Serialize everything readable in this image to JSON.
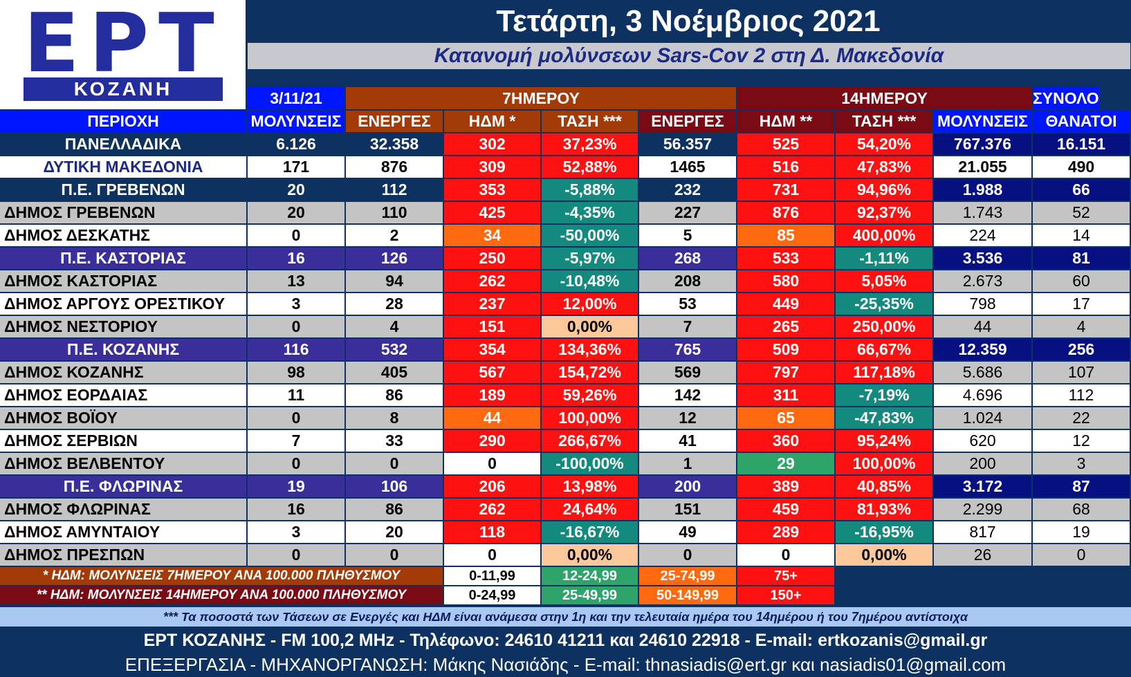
{
  "logo": {
    "main": "ΕΡΤ",
    "sub": "ΚΟΖΑΝΗ"
  },
  "header": {
    "date": "Τετάρτη, 3 Νοέμβριος 2021",
    "subtitle": "Κατανομή μολύνσεων Sars-Cov 2 στη Δ. Μακεδονία"
  },
  "groups": {
    "day": "3/11/21",
    "seven": "7ΗΜΕΡΟΥ",
    "fourteen": "14ΗΜΕΡΟΥ",
    "total": "ΣΥΝΟΛΟ"
  },
  "columns": [
    "ΠΕΡΙΟΧΗ",
    "ΜΟΛΥΝΣΕΙΣ",
    "ΕΝΕΡΓΕΣ",
    "ΗΔΜ *",
    "ΤΑΣΗ ***",
    "ΕΝΕΡΓΕΣ",
    "ΗΔΜ **",
    "ΤΑΣΗ ***",
    "ΜΟΛΥΝΣΕΙΣ",
    "ΘΑΝΑΤΟΙ"
  ],
  "rows": [
    {
      "type": "national",
      "cells": [
        "ΠΑΝΕΛΛΑΔΙΚΑ",
        "6.126",
        "32.358",
        "302",
        "37,23%",
        "56.357",
        "525",
        "54,20%",
        "767.376",
        "16.151"
      ],
      "colors": [
        "red",
        "red",
        "red",
        "red"
      ]
    },
    {
      "type": "region",
      "cells": [
        "ΔΥΤΙΚΗ ΜΑΚΕΔΟΝΙΑ",
        "171",
        "876",
        "309",
        "52,88%",
        "1465",
        "516",
        "47,83%",
        "21.055",
        "490"
      ],
      "colors": [
        "red",
        "red",
        "red",
        "red"
      ]
    },
    {
      "type": "pe",
      "cells": [
        "Π.Ε. ΓΡΕΒΕΝΩΝ",
        "20",
        "112",
        "353",
        "-5,88%",
        "232",
        "731",
        "94,96%",
        "1.988",
        "66"
      ],
      "colors": [
        "red",
        "teal",
        "red",
        "red"
      ]
    },
    {
      "type": "municipality",
      "shade": "grey",
      "cells": [
        "ΔΗΜΟΣ ΓΡΕΒΕΝΩΝ",
        "20",
        "110",
        "425",
        "-4,35%",
        "227",
        "876",
        "92,37%",
        "1.743",
        "52"
      ],
      "colors": [
        "red",
        "teal",
        "red",
        "red"
      ]
    },
    {
      "type": "municipality",
      "shade": "white",
      "cells": [
        "ΔΗΜΟΣ ΔΕΣΚΑΤΗΣ",
        "0",
        "2",
        "34",
        "-50,00%",
        "5",
        "85",
        "400,00%",
        "224",
        "14"
      ],
      "colors": [
        "orange",
        "teal",
        "orange",
        "red"
      ]
    },
    {
      "type": "pe",
      "cells": [
        "Π.Ε. ΚΑΣΤΟΡΙΑΣ",
        "16",
        "126",
        "250",
        "-5,97%",
        "268",
        "533",
        "-1,11%",
        "3.536",
        "81"
      ],
      "colors": [
        "red",
        "teal",
        "red",
        "teal"
      ]
    },
    {
      "type": "municipality",
      "shade": "grey",
      "cells": [
        "ΔΗΜΟΣ ΚΑΣΤΟΡΙΑΣ",
        "13",
        "94",
        "262",
        "-10,48%",
        "208",
        "580",
        "5,05%",
        "2.673",
        "60"
      ],
      "colors": [
        "red",
        "teal",
        "red",
        "red"
      ]
    },
    {
      "type": "municipality",
      "shade": "white",
      "cells": [
        "ΔΗΜΟΣ ΑΡΓΟΥΣ ΟΡΕΣΤΙΚΟΥ",
        "3",
        "28",
        "237",
        "12,00%",
        "53",
        "449",
        "-25,35%",
        "798",
        "17"
      ],
      "colors": [
        "red",
        "red",
        "red",
        "teal"
      ]
    },
    {
      "type": "municipality",
      "shade": "grey",
      "cells": [
        "ΔΗΜΟΣ ΝΕΣΤΟΡΙΟΥ",
        "0",
        "4",
        "151",
        "0,00%",
        "7",
        "265",
        "250,00%",
        "44",
        "4"
      ],
      "colors": [
        "red",
        "peach",
        "red",
        "red"
      ]
    },
    {
      "type": "pe",
      "cells": [
        "Π.Ε. ΚΟΖΑΝΗΣ",
        "116",
        "532",
        "354",
        "134,36%",
        "765",
        "509",
        "66,67%",
        "12.359",
        "256"
      ],
      "colors": [
        "red",
        "red",
        "red",
        "red"
      ]
    },
    {
      "type": "municipality",
      "shade": "grey",
      "cells": [
        "ΔΗΜΟΣ ΚΟΖΑΝΗΣ",
        "98",
        "405",
        "567",
        "154,72%",
        "569",
        "797",
        "117,18%",
        "5.686",
        "107"
      ],
      "colors": [
        "red",
        "red",
        "red",
        "red"
      ]
    },
    {
      "type": "municipality",
      "shade": "white",
      "cells": [
        "ΔΗΜΟΣ ΕΟΡΔΑΙΑΣ",
        "11",
        "86",
        "189",
        "59,26%",
        "142",
        "311",
        "-7,19%",
        "4.696",
        "112"
      ],
      "colors": [
        "red",
        "red",
        "red",
        "teal"
      ]
    },
    {
      "type": "municipality",
      "shade": "grey",
      "cells": [
        "ΔΗΜΟΣ ΒΟΪΟΥ",
        "0",
        "8",
        "44",
        "100,00%",
        "12",
        "65",
        "-47,83%",
        "1.024",
        "22"
      ],
      "colors": [
        "orange",
        "red",
        "orange",
        "teal"
      ]
    },
    {
      "type": "municipality",
      "shade": "white",
      "cells": [
        "ΔΗΜΟΣ ΣΕΡΒΙΩΝ",
        "7",
        "33",
        "290",
        "266,67%",
        "41",
        "360",
        "95,24%",
        "620",
        "12"
      ],
      "colors": [
        "red",
        "red",
        "red",
        "red"
      ]
    },
    {
      "type": "municipality",
      "shade": "grey",
      "cells": [
        "ΔΗΜΟΣ ΒΕΛΒΕΝΤΟΥ",
        "0",
        "0",
        "0",
        "-100,00%",
        "1",
        "29",
        "100,00%",
        "200",
        "3"
      ],
      "colors": [
        "white",
        "teal",
        "green",
        "red"
      ]
    },
    {
      "type": "pe",
      "cells": [
        "Π.Ε. ΦΛΩΡΙΝΑΣ",
        "19",
        "106",
        "206",
        "13,98%",
        "200",
        "389",
        "40,85%",
        "3.172",
        "87"
      ],
      "colors": [
        "red",
        "red",
        "red",
        "red"
      ]
    },
    {
      "type": "municipality",
      "shade": "grey",
      "cells": [
        "ΔΗΜΟΣ ΦΛΩΡΙΝΑΣ",
        "16",
        "86",
        "262",
        "24,64%",
        "151",
        "459",
        "81,93%",
        "2.299",
        "68"
      ],
      "colors": [
        "red",
        "red",
        "red",
        "red"
      ]
    },
    {
      "type": "municipality",
      "shade": "white",
      "cells": [
        "ΔΗΜΟΣ ΑΜΥΝΤΑΙΟΥ",
        "3",
        "20",
        "118",
        "-16,67%",
        "49",
        "289",
        "-16,95%",
        "817",
        "19"
      ],
      "colors": [
        "red",
        "teal",
        "red",
        "teal"
      ]
    },
    {
      "type": "municipality",
      "shade": "grey",
      "cells": [
        "ΔΗΜΟΣ ΠΡΕΣΠΩΝ",
        "0",
        "0",
        "0",
        "0,00%",
        "0",
        "0",
        "0,00%",
        "26",
        "0"
      ],
      "colors": [
        "white",
        "peach",
        "white",
        "peach"
      ]
    }
  ],
  "legend": [
    {
      "label": "* ΗΔΜ: ΜΟΛΥΝΣΕΙΣ 7ΗΜΕΡΟΥ ΑΝΑ 100.000 ΠΛΗΘΥΣΜΟΥ",
      "ranges": [
        "0-11,99",
        "12-24,99",
        "25-74,99",
        "75+"
      ]
    },
    {
      "label": "** ΗΔΜ: ΜΟΛΥΝΣΕΙΣ 14ΗΜΕΡΟΥ ΑΝΑ 100.000 ΠΛΗΘΥΣΜΟΥ",
      "ranges": [
        "0-24,99",
        "25-49,99",
        "50-149,99",
        "150+"
      ]
    }
  ],
  "note": "*** Τα ποσοστά των Τάσεων σε Ενεργές και ΗΔΜ είναι ανάμεσα στην 1η και την τελευταία ημέρα του 14ημέρου ή του 7ημέρου αντίστοιχα",
  "footer": {
    "line1": "ΕΡΤ ΚΟΖΑΝΗΣ - FM 100,2 MHz - Τηλέφωνο:  24610 41211 και 24610 22918 - E-mail: ertkozanis@gmail.gr",
    "line2": "ΕΠΕΞΕΡΓΑΣΙΑ  -  ΜΗΧΑΝΟΡΓΑΝΩΣΗ: Μάκης Νασιάδης  -   E-mail: thnasiadis@ert.gr και nasiadis01@gmail.com"
  }
}
